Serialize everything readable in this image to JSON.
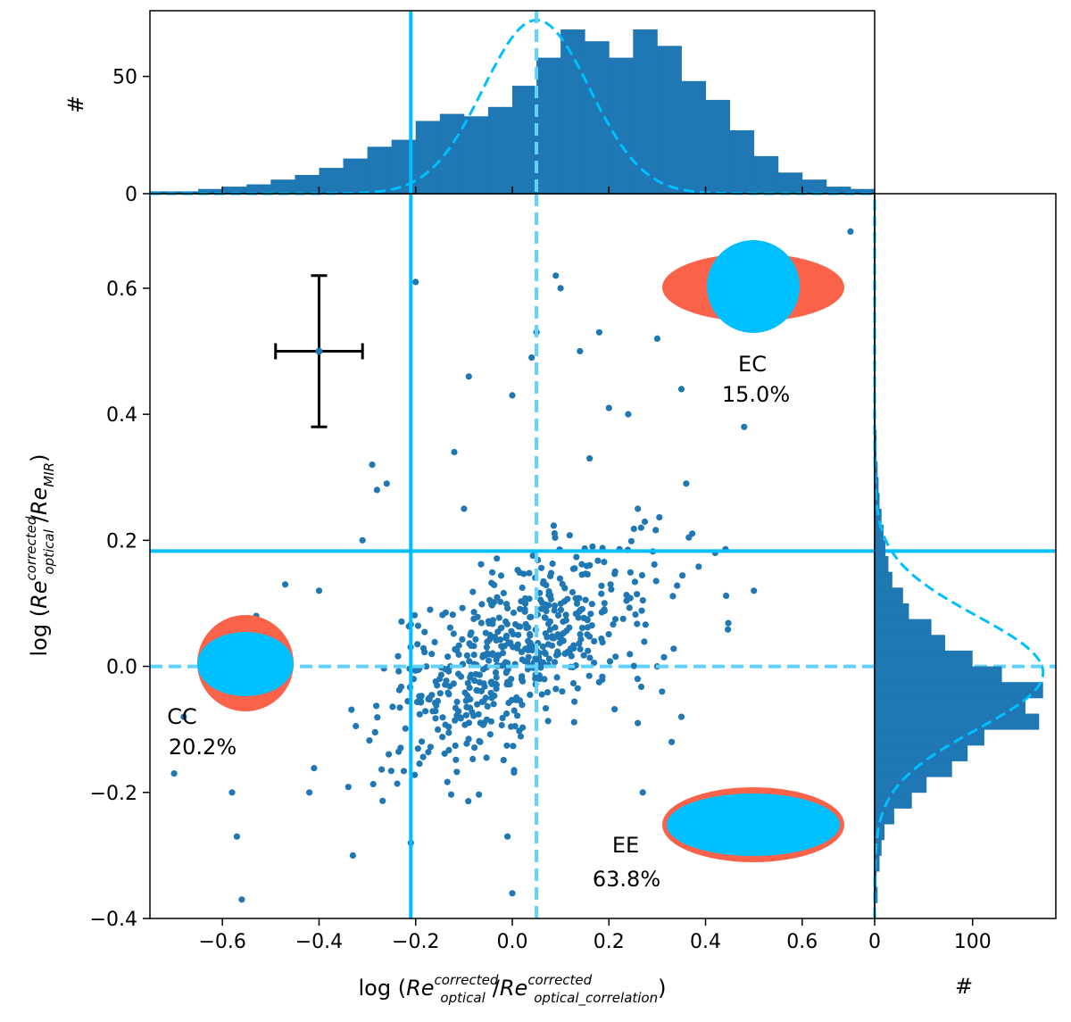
{
  "chart_data": [
    {
      "panel": "main",
      "type": "scatter",
      "xlabel_parts": [
        "log (",
        "Re",
        "corrected",
        "optical",
        "/",
        "Re",
        "corrected",
        "optical_correlation",
        ")"
      ],
      "ylabel_parts": [
        "log (",
        "Re",
        "corrected",
        "optical",
        "/",
        "Re",
        "MIR",
        ")"
      ],
      "xlim": [
        -0.75,
        0.75
      ],
      "ylim": [
        -0.4,
        0.75
      ],
      "xticks": [
        "−0.6",
        "−0.4",
        "−0.2",
        "0.0",
        "0.2",
        "0.4",
        "0.6"
      ],
      "yticks": [
        "−0.4",
        "−0.2",
        "0.0",
        "0.2",
        "0.4",
        "0.6"
      ],
      "vlines": [
        {
          "x": -0.21,
          "style": "solid"
        },
        {
          "x": 0.05,
          "style": "dashed"
        }
      ],
      "hlines": [
        {
          "y": 0.183,
          "style": "solid"
        },
        {
          "y": 0.0,
          "style": "dashed"
        }
      ],
      "errorbar": {
        "x": -0.4,
        "y": 0.5,
        "xerr": 0.09,
        "yerr": 0.12
      },
      "regions": [
        {
          "label": "EC",
          "percent": "15.0%"
        },
        {
          "label": "CC",
          "percent": "20.2%"
        },
        {
          "label": "EE",
          "percent": "63.8%"
        }
      ],
      "outer_color": "#fa634a",
      "inner_color": "#00bfff",
      "point_color": "#1f77b4",
      "line_color": "#00bfff",
      "highlight_points": [
        [
          0.7,
          0.69
        ],
        [
          0.48,
          0.38
        ],
        [
          0.5,
          0.12
        ],
        [
          0.42,
          0.18
        ],
        [
          0.3,
          0.52
        ],
        [
          0.35,
          0.44
        ],
        [
          0.36,
          0.29
        ],
        [
          0.18,
          0.53
        ],
        [
          0.14,
          0.5
        ],
        [
          0.09,
          0.62
        ],
        [
          0.05,
          0.53
        ],
        [
          0.04,
          0.49
        ],
        [
          0.1,
          0.6
        ],
        [
          -0.2,
          0.61
        ],
        [
          -0.09,
          0.46
        ],
        [
          -0.29,
          0.32
        ],
        [
          -0.26,
          0.29
        ],
        [
          -0.28,
          0.28
        ],
        [
          -0.31,
          0.2
        ],
        [
          -0.4,
          0.12
        ],
        [
          -0.53,
          0.08
        ],
        [
          -0.47,
          0.13
        ],
        [
          -0.7,
          -0.17
        ],
        [
          -0.58,
          -0.2
        ],
        [
          -0.57,
          -0.27
        ],
        [
          -0.56,
          -0.37
        ],
        [
          -0.42,
          -0.2
        ],
        [
          -0.33,
          -0.3
        ],
        [
          -0.21,
          -0.28
        ],
        [
          0.0,
          -0.36
        ],
        [
          -0.01,
          -0.27
        ],
        [
          0.33,
          -0.12
        ],
        [
          0.26,
          -0.09
        ],
        [
          0.31,
          -0.04
        ],
        [
          0.35,
          -0.08
        ],
        [
          -0.68,
          -0.08
        ],
        [
          0.26,
          0.25
        ],
        [
          0.24,
          0.4
        ],
        [
          0.2,
          0.41
        ],
        [
          0.16,
          0.33
        ],
        [
          -0.12,
          0.34
        ],
        [
          -0.1,
          0.25
        ],
        [
          0.0,
          0.43
        ],
        [
          0.3,
          0.0
        ],
        [
          0.27,
          -0.2
        ]
      ],
      "cluster_seed": 7,
      "cluster_count": 560,
      "cluster_center": [
        0.01,
        0.02
      ],
      "cluster_sd": [
        0.14,
        0.085
      ]
    },
    {
      "panel": "top",
      "type": "bar",
      "ylabel": "#",
      "xlim": [
        -0.75,
        0.75
      ],
      "ylim": [
        0,
        78
      ],
      "yticks": [
        "0",
        "50"
      ],
      "bin_start": -0.75,
      "bin_width": 0.05,
      "values": [
        1,
        1,
        2,
        3,
        4,
        6,
        8,
        11,
        15,
        20,
        23,
        31,
        34,
        33,
        37,
        46,
        58,
        70,
        65,
        58,
        70,
        63,
        48,
        40,
        27,
        16,
        9,
        6,
        3,
        2
      ],
      "bar_color": "#1f77b4",
      "curve": {
        "mu": 0.05,
        "sigma": 0.11,
        "peak": 74,
        "color": "#00bfff",
        "style": "dashed"
      }
    },
    {
      "panel": "right",
      "type": "bar",
      "orientation": "horizontal",
      "xlabel": "#",
      "xlim": [
        0,
        185
      ],
      "ylim": [
        -0.4,
        0.75
      ],
      "xticks": [
        "0",
        "100"
      ],
      "xtick_values": [
        0,
        100
      ],
      "bin_start": -0.4,
      "bin_width": 0.025,
      "values": [
        0,
        3,
        2,
        5,
        7,
        10,
        20,
        38,
        53,
        79,
        95,
        112,
        168,
        154,
        172,
        130,
        100,
        72,
        58,
        35,
        29,
        18,
        14,
        11,
        9,
        7,
        5,
        4,
        3,
        2,
        2,
        1,
        1,
        1,
        0,
        0,
        0,
        0,
        0,
        0,
        0,
        0,
        0,
        0,
        0,
        0
      ],
      "bar_color": "#1f77b4",
      "curve": {
        "mu": -0.01,
        "sigma": 0.09,
        "peak": 172,
        "color": "#00bfff",
        "style": "dashed"
      }
    }
  ]
}
